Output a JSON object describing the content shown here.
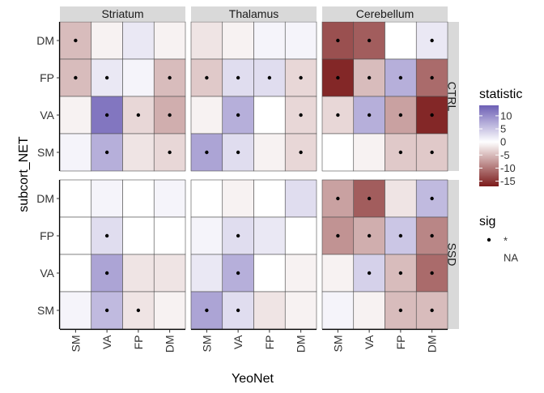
{
  "chart_data": {
    "type": "heatmap",
    "title": "",
    "xlabel": "YeoNet",
    "ylabel": "subcort_NET",
    "x_categories": [
      "SM",
      "VA",
      "FP",
      "DM"
    ],
    "y_categories": [
      "DM",
      "FP",
      "VA",
      "SM"
    ],
    "column_facets": [
      "Striatum",
      "Thalamus",
      "Cerebellum"
    ],
    "row_facets": [
      "CTRL",
      "SSD"
    ],
    "fill_scale": {
      "name": "statistic",
      "low_color": "#7B1A1A",
      "mid_color": "#FFFFFF",
      "high_color": "#6D5FB5",
      "limits": [
        -17,
        14
      ],
      "breaks": [
        10,
        5,
        0,
        -5,
        -10,
        -15
      ]
    },
    "sig_legend": {
      "title": "sig",
      "labels": [
        "*",
        "NA"
      ]
    },
    "panels": [
      {
        "row": "CTRL",
        "col": "Striatum",
        "values": [
          [
            -5,
            -1,
            2,
            -1
          ],
          [
            -5,
            2,
            1,
            -5
          ],
          [
            -1,
            12,
            -3,
            -6
          ],
          [
            1,
            7,
            -2,
            -3
          ]
        ],
        "sig": [
          [
            true,
            false,
            false,
            false
          ],
          [
            true,
            true,
            false,
            true
          ],
          [
            false,
            true,
            true,
            true
          ],
          [
            false,
            true,
            false,
            true
          ]
        ]
      },
      {
        "row": "CTRL",
        "col": "Thalamus",
        "values": [
          [
            -2,
            -1,
            1,
            1
          ],
          [
            -4,
            3,
            3,
            -3
          ],
          [
            -1,
            7,
            0,
            -3
          ],
          [
            8,
            3,
            -1,
            -3
          ]
        ],
        "sig": [
          [
            false,
            false,
            false,
            false
          ],
          [
            true,
            true,
            true,
            true
          ],
          [
            false,
            true,
            false,
            true
          ],
          [
            true,
            true,
            false,
            true
          ]
        ]
      },
      {
        "row": "CTRL",
        "col": "Cerebellum",
        "values": [
          [
            -13,
            -12,
            0,
            2
          ],
          [
            -16,
            -5,
            7,
            -11
          ],
          [
            -3,
            7,
            -7,
            -16
          ],
          [
            0,
            -1,
            -4,
            -4
          ]
        ],
        "sig": [
          [
            true,
            true,
            false,
            true
          ],
          [
            true,
            true,
            true,
            true
          ],
          [
            true,
            true,
            true,
            true
          ],
          [
            false,
            false,
            true,
            true
          ]
        ]
      },
      {
        "row": "SSD",
        "col": "Striatum",
        "values": [
          [
            0,
            1,
            0,
            1
          ],
          [
            0,
            3,
            0,
            0
          ],
          [
            0,
            8,
            -2,
            -2
          ],
          [
            1,
            6,
            -2,
            -1
          ]
        ],
        "sig": [
          [
            false,
            false,
            false,
            false
          ],
          [
            false,
            true,
            false,
            false
          ],
          [
            false,
            true,
            false,
            false
          ],
          [
            false,
            true,
            true,
            false
          ]
        ]
      },
      {
        "row": "SSD",
        "col": "Thalamus",
        "values": [
          [
            0,
            -1,
            0,
            3
          ],
          [
            1,
            3,
            2,
            0
          ],
          [
            2,
            7,
            0,
            -1
          ],
          [
            8,
            3,
            -2,
            -1
          ]
        ],
        "sig": [
          [
            false,
            false,
            false,
            false
          ],
          [
            false,
            true,
            false,
            false
          ],
          [
            false,
            true,
            false,
            false
          ],
          [
            true,
            true,
            false,
            false
          ]
        ]
      },
      {
        "row": "SSD",
        "col": "Cerebellum",
        "values": [
          [
            -7,
            -12,
            -2,
            6
          ],
          [
            -8,
            -6,
            5,
            -9
          ],
          [
            -1,
            4,
            -5,
            -11
          ],
          [
            1,
            -1,
            -5,
            -5
          ]
        ],
        "sig": [
          [
            true,
            true,
            false,
            true
          ],
          [
            true,
            true,
            true,
            true
          ],
          [
            false,
            true,
            true,
            true
          ],
          [
            false,
            false,
            true,
            true
          ]
        ]
      }
    ]
  }
}
